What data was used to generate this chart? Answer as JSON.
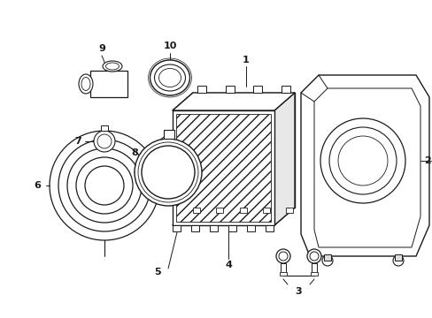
{
  "bg_color": "#ffffff",
  "line_color": "#1a1a1a",
  "lw_main": 1.0,
  "lw_thin": 0.6,
  "label_fs": 8
}
